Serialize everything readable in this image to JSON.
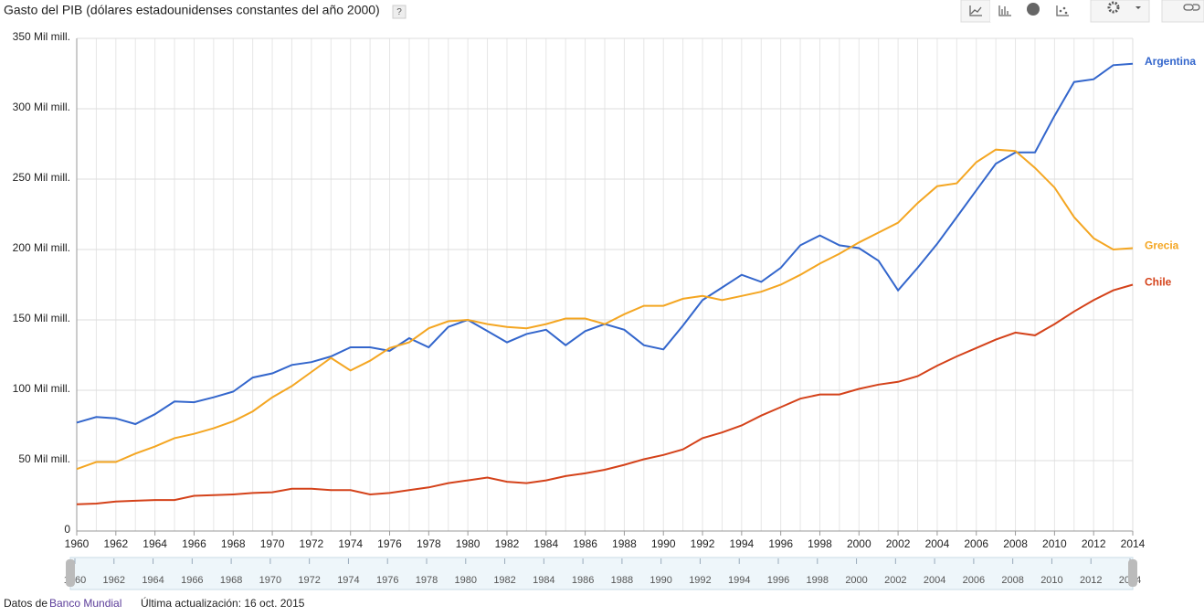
{
  "chart_data": {
    "type": "line",
    "title": "Gasto del PIB (dólares estadounidenses constantes del año 2000)",
    "x": [
      1960,
      1961,
      1962,
      1963,
      1964,
      1965,
      1966,
      1967,
      1968,
      1969,
      1970,
      1971,
      1972,
      1973,
      1974,
      1975,
      1976,
      1977,
      1978,
      1979,
      1980,
      1981,
      1982,
      1983,
      1984,
      1985,
      1986,
      1987,
      1988,
      1989,
      1990,
      1991,
      1992,
      1993,
      1994,
      1995,
      1996,
      1997,
      1998,
      1999,
      2000,
      2001,
      2002,
      2003,
      2004,
      2005,
      2006,
      2007,
      2008,
      2009,
      2010,
      2011,
      2012,
      2013,
      2014
    ],
    "series": [
      {
        "name": "Argentina",
        "color": "#3366cc",
        "values": [
          77,
          81,
          80,
          76,
          83,
          92,
          91.5,
          95,
          99,
          109,
          112,
          118,
          120,
          124,
          130.5,
          130.5,
          128,
          137,
          130.5,
          145,
          150,
          142,
          134,
          140,
          143,
          132,
          142,
          147,
          143,
          132,
          129,
          146,
          164,
          173,
          182,
          177,
          187,
          203,
          210,
          203,
          201,
          192,
          171,
          187,
          204,
          223,
          242,
          261,
          269,
          269,
          295,
          319,
          321,
          331,
          332
        ]
      },
      {
        "name": "Grecia",
        "color": "#f4a622",
        "values": [
          44,
          49,
          49,
          55,
          60,
          66,
          69,
          73,
          78,
          85,
          95,
          103,
          113,
          123,
          114,
          121,
          130,
          134,
          144,
          149,
          150,
          147,
          145,
          144,
          147,
          151,
          151,
          147,
          154,
          160,
          160,
          165,
          167,
          164,
          167,
          170,
          175,
          182,
          190,
          197,
          205,
          212,
          219,
          233,
          245,
          247,
          262,
          271,
          270,
          258,
          244,
          223,
          208,
          200,
          201
        ]
      },
      {
        "name": "Chile",
        "color": "#d4421a",
        "values": [
          19,
          19.5,
          21,
          21.5,
          22,
          22,
          25,
          25.5,
          26,
          27,
          27.5,
          30,
          30,
          29,
          29,
          26,
          27,
          29,
          31,
          34,
          36,
          38,
          35,
          34,
          36,
          39,
          41,
          43.5,
          47,
          51,
          54,
          58,
          66,
          70,
          75,
          82,
          88,
          94,
          97,
          97,
          101,
          104,
          106,
          110,
          117.5,
          124,
          130,
          136,
          141,
          139,
          147,
          156,
          164,
          171,
          175
        ]
      }
    ],
    "xlim": [
      1960,
      2014
    ],
    "xticks": [
      1960,
      1962,
      1964,
      1966,
      1968,
      1970,
      1972,
      1974,
      1976,
      1978,
      1980,
      1982,
      1984,
      1986,
      1988,
      1990,
      1992,
      1994,
      1996,
      1998,
      2000,
      2002,
      2004,
      2006,
      2008,
      2010,
      2012,
      2014
    ],
    "ylim": [
      0,
      350
    ],
    "yticks": [
      0,
      {
        "value": 50,
        "label": "50 Mil mill."
      },
      {
        "value": 100,
        "label": "100 Mil mill."
      },
      {
        "value": 150,
        "label": "150 Mil mill."
      },
      {
        "value": 200,
        "label": "200 Mil mill."
      },
      {
        "value": 250,
        "label": "250 Mil mill."
      },
      {
        "value": 300,
        "label": "300 Mil mill."
      },
      {
        "value": 350,
        "label": "350 Mil mill."
      }
    ],
    "grid": true
  },
  "help": "?",
  "footer": {
    "source_prefix": "Datos de",
    "source_link": "Banco Mundial",
    "updated": "Última actualización: 16 oct. 2015"
  }
}
